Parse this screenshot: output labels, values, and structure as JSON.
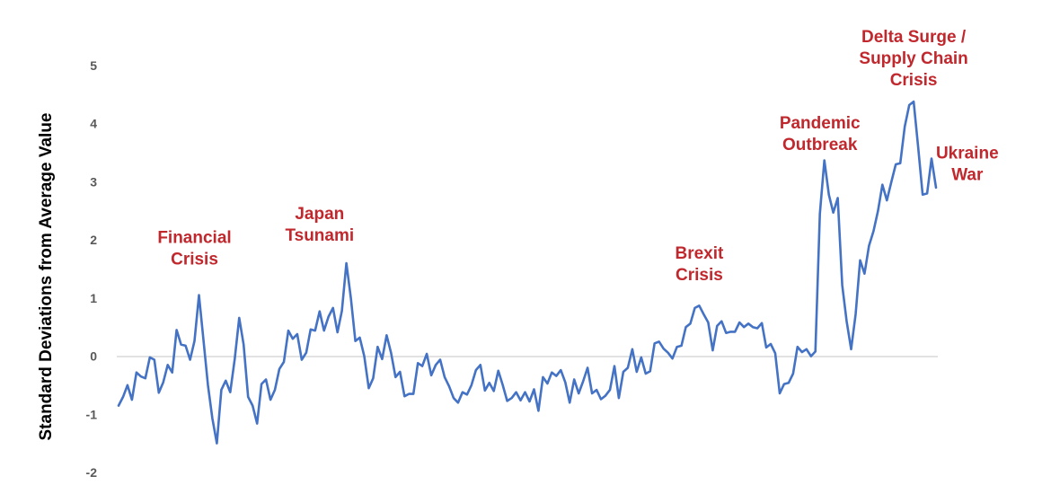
{
  "chart_data": {
    "type": "line",
    "title": "",
    "xlabel": "",
    "ylabel": "Standard Deviations from Average Value",
    "ylim": [
      -2,
      5
    ],
    "yticks": [
      -2,
      -1,
      0,
      1,
      2,
      3,
      4,
      5
    ],
    "grid": false,
    "legend": "none",
    "line_color": "#4472C4",
    "annotation_color": "#C0282D",
    "series": [
      {
        "values": [
          -0.85,
          -0.7,
          -0.5,
          -0.75,
          -0.28,
          -0.35,
          -0.38,
          -0.02,
          -0.06,
          -0.63,
          -0.45,
          -0.15,
          -0.28,
          0.45,
          0.2,
          0.18,
          -0.06,
          0.26,
          1.05,
          0.28,
          -0.5,
          -1.07,
          -1.5,
          -0.58,
          -0.42,
          -0.62,
          -0.05,
          0.66,
          0.2,
          -0.7,
          -0.85,
          -1.16,
          -0.48,
          -0.4,
          -0.75,
          -0.58,
          -0.22,
          -0.1,
          0.44,
          0.3,
          0.38,
          -0.06,
          0.06,
          0.46,
          0.44,
          0.77,
          0.44,
          0.68,
          0.83,
          0.41,
          0.78,
          1.6,
          1.0,
          0.26,
          0.32,
          0.0,
          -0.55,
          -0.38,
          0.16,
          -0.05,
          0.36,
          0.06,
          -0.36,
          -0.27,
          -0.69,
          -0.65,
          -0.65,
          -0.12,
          -0.17,
          0.04,
          -0.33,
          -0.15,
          -0.06,
          -0.36,
          -0.52,
          -0.72,
          -0.8,
          -0.62,
          -0.66,
          -0.5,
          -0.24,
          -0.15,
          -0.59,
          -0.46,
          -0.6,
          -0.25,
          -0.5,
          -0.77,
          -0.72,
          -0.62,
          -0.76,
          -0.62,
          -0.78,
          -0.57,
          -0.94,
          -0.36,
          -0.47,
          -0.28,
          -0.34,
          -0.24,
          -0.45,
          -0.8,
          -0.4,
          -0.64,
          -0.43,
          -0.2,
          -0.64,
          -0.58,
          -0.74,
          -0.68,
          -0.58,
          -0.17,
          -0.72,
          -0.27,
          -0.2,
          0.12,
          -0.27,
          -0.02,
          -0.3,
          -0.26,
          0.22,
          0.25,
          0.13,
          0.06,
          -0.04,
          0.16,
          0.18,
          0.5,
          0.56,
          0.83,
          0.87,
          0.72,
          0.58,
          0.1,
          0.52,
          0.6,
          0.4,
          0.42,
          0.42,
          0.58,
          0.5,
          0.56,
          0.5,
          0.48,
          0.57,
          0.15,
          0.21,
          0.05,
          -0.64,
          -0.48,
          -0.46,
          -0.3,
          0.16,
          0.07,
          0.12,
          0.0,
          0.08,
          2.45,
          3.37,
          2.78,
          2.47,
          2.72,
          1.22,
          0.6,
          0.12,
          0.72,
          1.65,
          1.42,
          1.9,
          2.15,
          2.5,
          2.95,
          2.68,
          3.0,
          3.3,
          3.32,
          3.95,
          4.32,
          4.38,
          3.6,
          2.78,
          2.8,
          3.4,
          2.9
        ]
      }
    ],
    "annotations": [
      {
        "lines": [
          "Financial",
          "Crisis"
        ],
        "x_index": 17,
        "y": 1.95
      },
      {
        "lines": [
          "Japan",
          "Tsunami"
        ],
        "x_index": 45,
        "y": 2.36
      },
      {
        "lines": [
          "Brexit",
          "Crisis"
        ],
        "x_index": 130,
        "y": 1.68
      },
      {
        "lines": [
          "Pandemic",
          "Outbreak"
        ],
        "x_index": 157,
        "y": 3.92
      },
      {
        "lines": [
          "Delta Surge /",
          "Supply Chain",
          "Crisis"
        ],
        "x_index": 178,
        "y": 5.4
      },
      {
        "lines": [
          "Ukraine",
          "War"
        ],
        "x_index": 190,
        "y": 3.4
      }
    ]
  }
}
